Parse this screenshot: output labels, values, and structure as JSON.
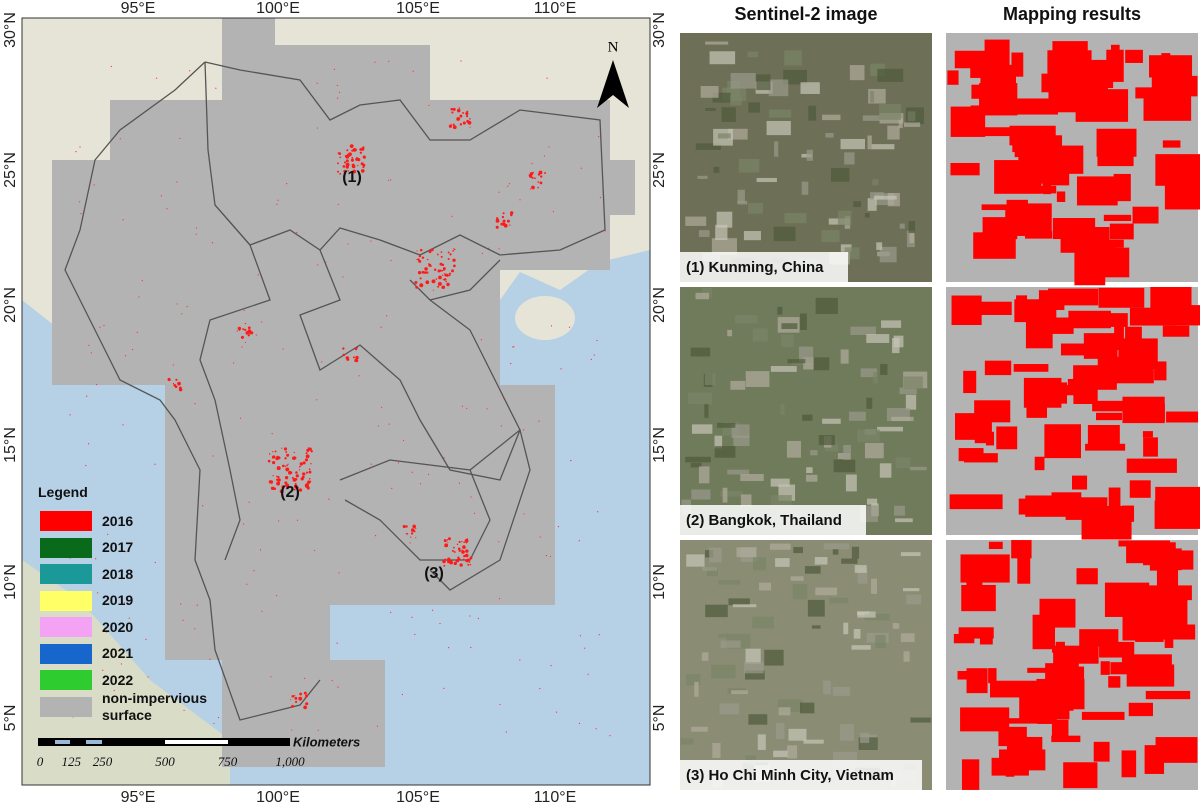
{
  "map": {
    "lon_labels": [
      "95°E",
      "100°E",
      "105°E",
      "110°E"
    ],
    "lat_labels": [
      "30°N",
      "25°N",
      "20°N",
      "15°N",
      "10°N",
      "5°N"
    ],
    "north": "N",
    "sites": [
      "(1)",
      "(2)",
      "(3)"
    ],
    "legend": {
      "title": "Legend",
      "items": [
        {
          "label": "2016",
          "color": "#ff0000"
        },
        {
          "label": "2017",
          "color": "#0a6a1c"
        },
        {
          "label": "2018",
          "color": "#1b9898"
        },
        {
          "label": "2019",
          "color": "#ffff66"
        },
        {
          "label": "2020",
          "color": "#f4a3f4"
        },
        {
          "label": "2021",
          "color": "#1766cc"
        },
        {
          "label": "2022",
          "color": "#2ecc2e"
        },
        {
          "label": "non-impervious surface",
          "color": "#b3b3b3"
        }
      ]
    },
    "scale_bar": {
      "unit": "Kilometers",
      "ticks": [
        "0",
        "125",
        "250",
        "500",
        "750",
        "1,000"
      ]
    }
  },
  "panels": {
    "headers": [
      "Sentinel-2 image",
      "Mapping results"
    ],
    "captions": [
      "(1) Kunming, China",
      "(2) Bangkok, Thailand",
      "(3) Ho Chi Minh City, Vietnam"
    ]
  }
}
